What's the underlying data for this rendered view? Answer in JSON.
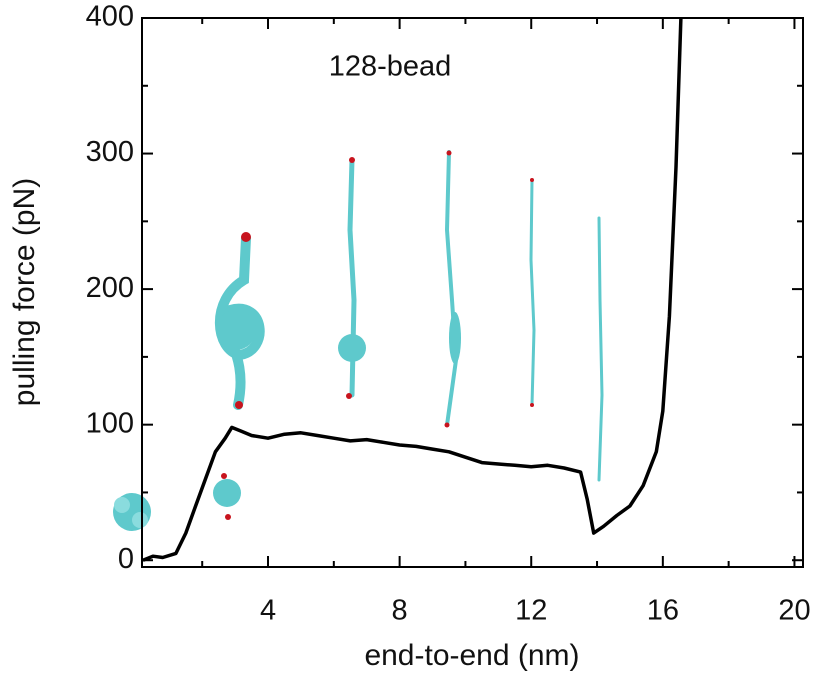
{
  "chart_data": {
    "type": "line",
    "annotation": "128-bead",
    "xlabel": "end-to-end (nm)",
    "ylabel": "pulling force (pN)",
    "xlim": [
      0.17,
      20.26
    ],
    "ylim": [
      -5,
      400
    ],
    "xticks": [
      4,
      8,
      12,
      16,
      20
    ],
    "xminorticks": [
      2,
      6,
      10,
      14,
      18
    ],
    "yticks": [
      0,
      100,
      200,
      300,
      400
    ],
    "yminorticks": [
      50,
      150,
      250,
      350
    ],
    "series": [
      {
        "color": "#000000",
        "x": [
          0.2,
          0.5,
          0.8,
          1.2,
          1.5,
          1.8,
          2.1,
          2.4,
          2.7,
          2.9,
          3.2,
          3.5,
          4,
          4.5,
          5,
          5.5,
          6,
          6.5,
          7,
          7.5,
          8,
          8.5,
          9,
          9.5,
          10,
          10.5,
          11,
          11.5,
          12,
          12.5,
          13,
          13.5,
          13.7,
          13.9,
          14.2,
          14.6,
          15,
          15.4,
          15.8,
          16,
          16.2,
          16.4,
          16.55
        ],
        "values": [
          0,
          3,
          2,
          5,
          20,
          40,
          60,
          80,
          90,
          98,
          95,
          92,
          90,
          93,
          94,
          92,
          90,
          88,
          89,
          87,
          85,
          84,
          82,
          80,
          76,
          72,
          71,
          70,
          69,
          70,
          68,
          65,
          45,
          20,
          25,
          33,
          40,
          55,
          80,
          110,
          180,
          290,
          400
        ]
      }
    ]
  }
}
